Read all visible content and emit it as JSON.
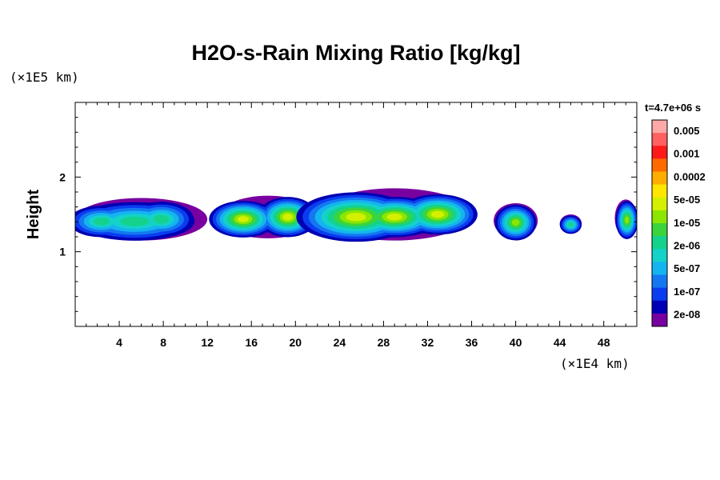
{
  "chart_data": {
    "type": "heatmap",
    "title": "H2O-s-Rain Mixing Ratio [kg/kg]",
    "ylabel": "Height",
    "y_unit": "(×1E5 km)",
    "x_unit": "(×1E4 km)",
    "time_label": "t=4.7e+06 s",
    "xlim": [
      0,
      51
    ],
    "ylim": [
      0,
      3
    ],
    "x_ticks": [
      "4",
      "8",
      "12",
      "16",
      "20",
      "24",
      "28",
      "32",
      "36",
      "40",
      "44",
      "48"
    ],
    "x_tick_values": [
      4,
      8,
      12,
      16,
      20,
      24,
      28,
      32,
      36,
      40,
      44,
      48
    ],
    "y_ticks": [
      "1",
      "2"
    ],
    "y_tick_values": [
      1,
      2
    ],
    "colorbar": {
      "labels": [
        "0.005",
        "0.001",
        "0.0002",
        "5e-05",
        "1e-05",
        "2e-06",
        "5e-07",
        "1e-07",
        "2e-08"
      ],
      "colors": [
        "#ffa8a8",
        "#ff6060",
        "#ff1a1a",
        "#ff6a00",
        "#ffae00",
        "#ffe600",
        "#d4f000",
        "#8ce600",
        "#3cd43c",
        "#14d28c",
        "#14d2c8",
        "#14b4f0",
        "#1478f0",
        "#0a3cf0",
        "#0000b4",
        "#7800a0"
      ]
    },
    "clouds": [
      {
        "x": [
          0,
          12
        ],
        "y": [
          1.15,
          1.72
        ],
        "peak_level": "2e-06"
      },
      {
        "x": [
          13,
          22
        ],
        "y": [
          1.18,
          1.75
        ],
        "peak_level": "5e-05"
      },
      {
        "x": [
          22,
          36
        ],
        "y": [
          1.15,
          1.85
        ],
        "peak_level": "5e-05"
      },
      {
        "x": [
          38,
          42
        ],
        "y": [
          1.18,
          1.65
        ],
        "peak_level": "1e-05"
      },
      {
        "x": [
          44,
          46
        ],
        "y": [
          1.25,
          1.5
        ],
        "peak_level": "2e-06"
      },
      {
        "x": [
          49,
          51
        ],
        "y": [
          1.2,
          1.7
        ],
        "peak_level": "1e-05"
      }
    ]
  }
}
